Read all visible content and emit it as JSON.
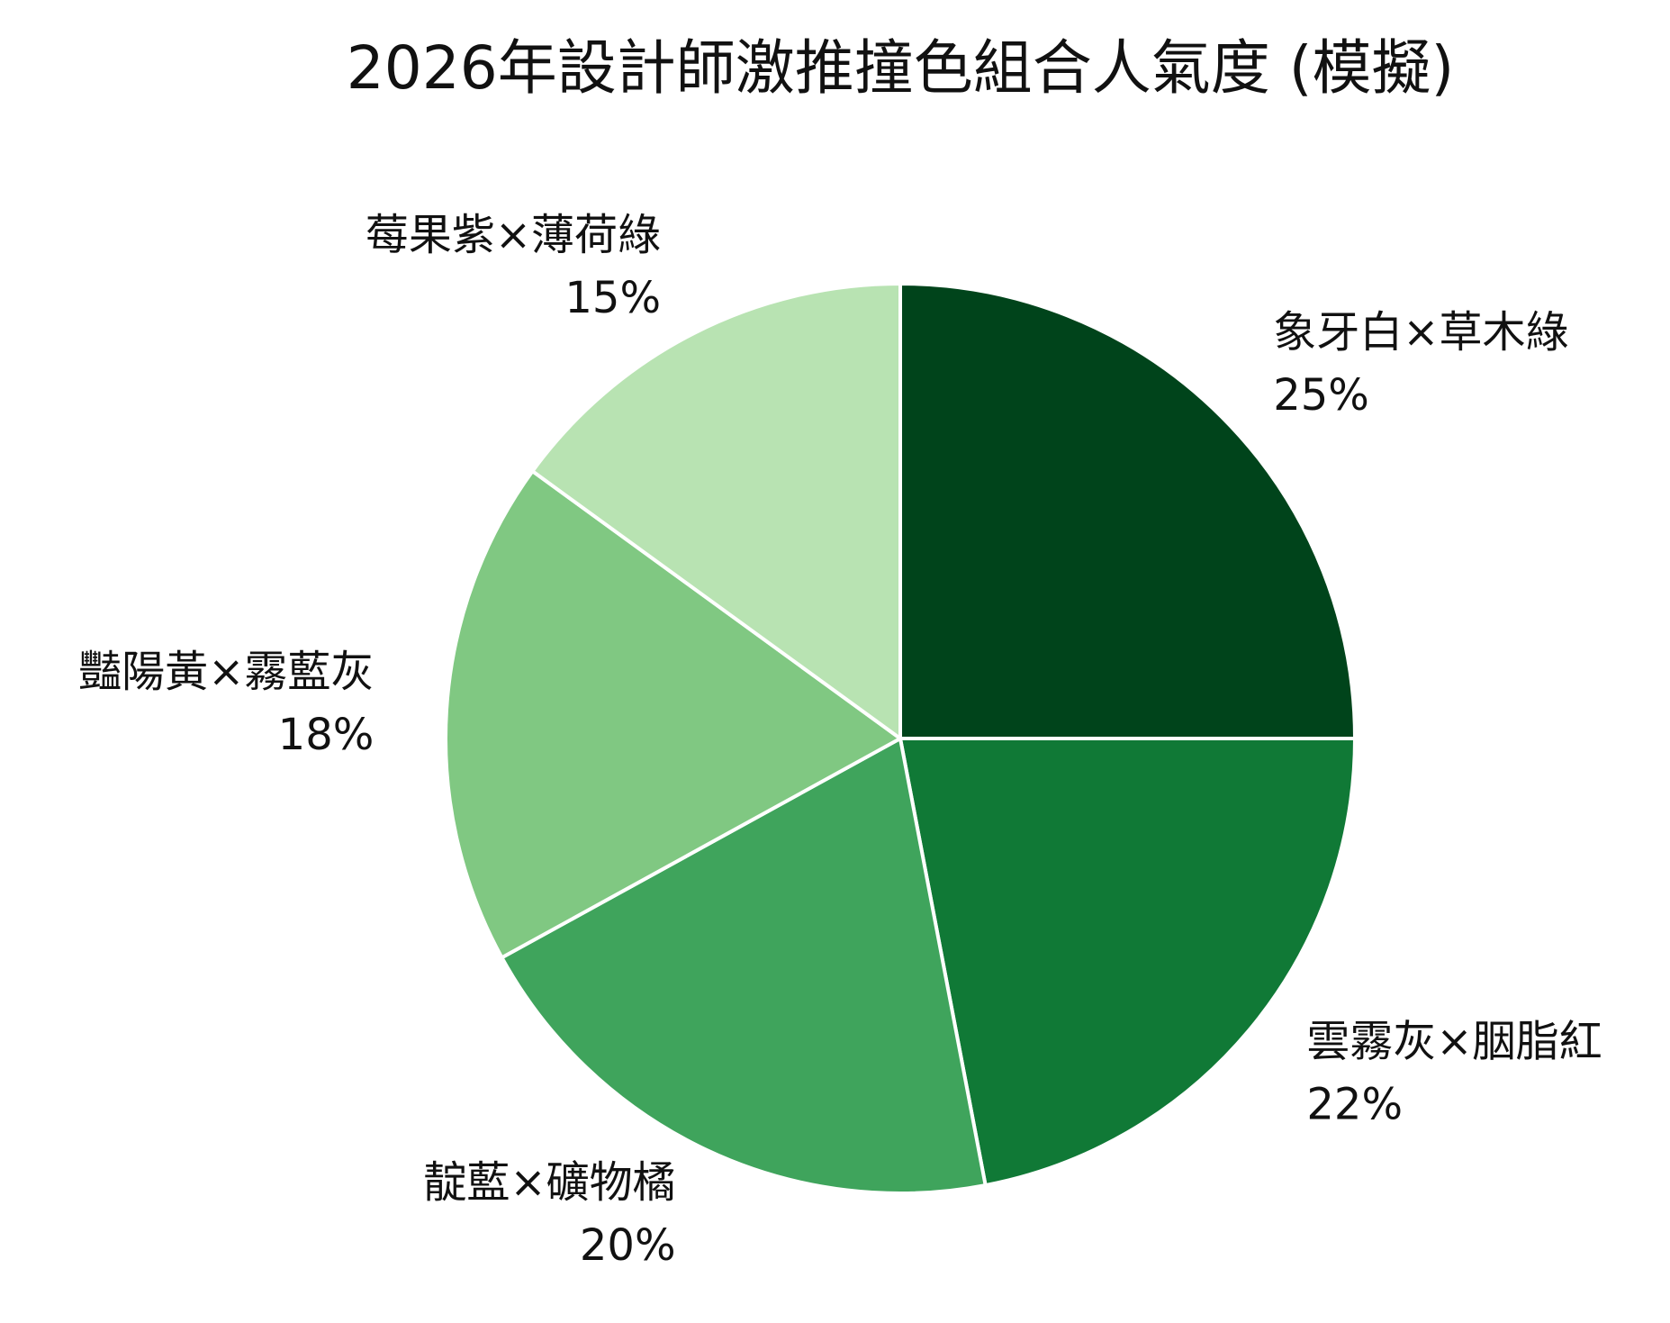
{
  "chart_data": {
    "type": "pie",
    "title": "2026年設計師激推撞色組合人氣度 (模擬)",
    "start_angle_deg": 90,
    "direction": "clockwise",
    "slices": [
      {
        "label": "象牙白×草木綠",
        "value": 25,
        "value_label": "25%",
        "color": "#00441b"
      },
      {
        "label": "雲霧灰×胭脂紅",
        "value": 22,
        "value_label": "22%",
        "color": "#107936"
      },
      {
        "label": "靛藍×礦物橘",
        "value": 20,
        "value_label": "20%",
        "color": "#3fa45c"
      },
      {
        "label": "豔陽黃×霧藍灰",
        "value": 18,
        "value_label": "18%",
        "color": "#80c882"
      },
      {
        "label": "莓果紫×薄荷綠",
        "value": 15,
        "value_label": "15%",
        "color": "#b8e3b2"
      }
    ],
    "slice_edge_color": "#ffffff",
    "background": "#ffffff"
  }
}
